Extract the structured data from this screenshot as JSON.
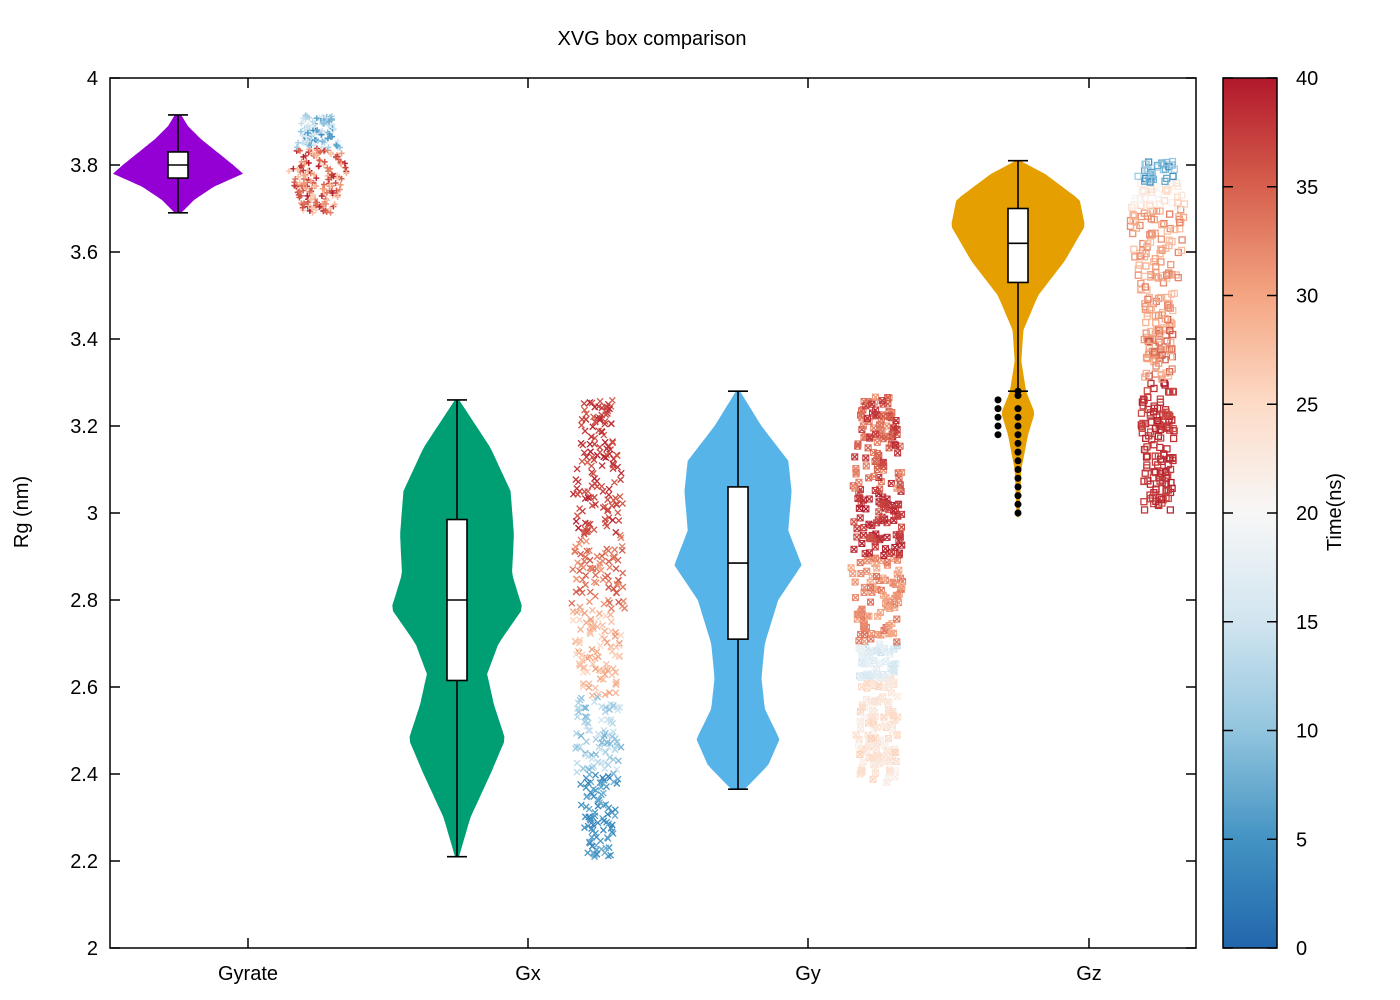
{
  "chart_data": {
    "type": "violin",
    "title": "XVG box comparison",
    "ylabel": "Rg (nm)",
    "xlabel": "",
    "ylim": [
      2,
      4
    ],
    "yticks": [
      "2",
      "2.2",
      "2.4",
      "2.6",
      "2.8",
      "3",
      "3.2",
      "3.4",
      "3.6",
      "3.8",
      "4"
    ],
    "categories": [
      "Gyrate",
      "Gx",
      "Gy",
      "Gz"
    ],
    "series": [
      {
        "name": "Gyrate",
        "color": "#9400d3",
        "marker": "+",
        "min": 3.69,
        "q1": 3.77,
        "median": 3.8,
        "q3": 3.83,
        "max": 3.915,
        "profile": [
          [
            3.69,
            0.05
          ],
          [
            3.72,
            0.25
          ],
          [
            3.75,
            0.55
          ],
          [
            3.78,
            1.0
          ],
          [
            3.8,
            0.85
          ],
          [
            3.83,
            0.6
          ],
          [
            3.86,
            0.35
          ],
          [
            3.89,
            0.15
          ],
          [
            3.915,
            0.05
          ]
        ],
        "scatter_bands": [
          {
            "y0": 3.69,
            "y1": 3.84,
            "t0": 26,
            "t1": 40
          },
          {
            "y0": 3.84,
            "y1": 3.915,
            "t0": 4,
            "t1": 18
          }
        ],
        "outliers": []
      },
      {
        "name": "Gx",
        "color": "#009e73",
        "marker": "x",
        "min": 2.21,
        "q1": 2.615,
        "median": 2.8,
        "q3": 2.985,
        "max": 3.26,
        "profile": [
          [
            2.21,
            0.03
          ],
          [
            2.3,
            0.2
          ],
          [
            2.4,
            0.5
          ],
          [
            2.48,
            0.72
          ],
          [
            2.56,
            0.55
          ],
          [
            2.63,
            0.45
          ],
          [
            2.7,
            0.62
          ],
          [
            2.78,
            0.98
          ],
          [
            2.86,
            0.82
          ],
          [
            2.95,
            0.85
          ],
          [
            3.05,
            0.8
          ],
          [
            3.15,
            0.5
          ],
          [
            3.26,
            0.03
          ]
        ],
        "scatter_bands": [
          {
            "y0": 2.21,
            "y1": 2.4,
            "t0": 3,
            "t1": 8
          },
          {
            "y0": 2.4,
            "y1": 2.58,
            "t0": 8,
            "t1": 15
          },
          {
            "y0": 2.58,
            "y1": 2.78,
            "t0": 25,
            "t1": 31
          },
          {
            "y0": 2.78,
            "y1": 2.95,
            "t0": 30,
            "t1": 36
          },
          {
            "y0": 2.95,
            "y1": 3.26,
            "t0": 35,
            "t1": 40
          }
        ],
        "outliers": []
      },
      {
        "name": "Gy",
        "color": "#56b4e9",
        "marker": "square-cross",
        "min": 2.365,
        "q1": 2.71,
        "median": 2.885,
        "q3": 3.06,
        "max": 3.28,
        "profile": [
          [
            2.365,
            0.1
          ],
          [
            2.42,
            0.45
          ],
          [
            2.48,
            0.62
          ],
          [
            2.55,
            0.4
          ],
          [
            2.62,
            0.35
          ],
          [
            2.7,
            0.4
          ],
          [
            2.8,
            0.6
          ],
          [
            2.88,
            0.95
          ],
          [
            2.96,
            0.75
          ],
          [
            3.05,
            0.8
          ],
          [
            3.12,
            0.75
          ],
          [
            3.2,
            0.35
          ],
          [
            3.28,
            0.03
          ]
        ],
        "scatter_bands": [
          {
            "y0": 2.38,
            "y1": 2.62,
            "t0": 21,
            "t1": 26
          },
          {
            "y0": 2.62,
            "y1": 2.7,
            "t0": 14,
            "t1": 19
          },
          {
            "y0": 2.7,
            "y1": 2.9,
            "t0": 29,
            "t1": 34
          },
          {
            "y0": 2.9,
            "y1": 3.05,
            "t0": 36,
            "t1": 40
          },
          {
            "y0": 3.05,
            "y1": 3.27,
            "t0": 31,
            "t1": 39
          }
        ],
        "outliers": []
      },
      {
        "name": "Gz",
        "color": "#e69f00",
        "marker": "square",
        "min": 3.28,
        "q1": 3.53,
        "median": 3.62,
        "q3": 3.7,
        "max": 3.81,
        "profile": [
          [
            2.99,
            0.02
          ],
          [
            3.1,
            0.05
          ],
          [
            3.18,
            0.15
          ],
          [
            3.23,
            0.25
          ],
          [
            3.28,
            0.12
          ],
          [
            3.35,
            0.05
          ],
          [
            3.42,
            0.08
          ],
          [
            3.5,
            0.3
          ],
          [
            3.58,
            0.7
          ],
          [
            3.66,
            1.0
          ],
          [
            3.72,
            0.92
          ],
          [
            3.78,
            0.4
          ],
          [
            3.81,
            0.03
          ]
        ],
        "scatter_bands": [
          {
            "y0": 3.0,
            "y1": 3.3,
            "t0": 36,
            "t1": 40
          },
          {
            "y0": 3.3,
            "y1": 3.45,
            "t0": 28,
            "t1": 36
          },
          {
            "y0": 3.45,
            "y1": 3.7,
            "t0": 27,
            "t1": 33
          },
          {
            "y0": 3.7,
            "y1": 3.76,
            "t0": 19,
            "t1": 26
          },
          {
            "y0": 3.76,
            "y1": 3.81,
            "t0": 3,
            "t1": 12
          }
        ],
        "outliers": [
          3.18,
          3.2,
          3.22,
          3.24,
          3.26,
          3.28,
          3.27,
          3.24,
          3.22,
          3.2,
          3.18,
          3.16,
          3.14,
          3.12,
          3.1,
          3.08,
          3.06,
          3.04,
          3.02,
          3.0
        ]
      }
    ],
    "colorbar": {
      "label": "Time(ns)",
      "ticks": [
        "0",
        "5",
        "10",
        "15",
        "20",
        "25",
        "30",
        "35",
        "40"
      ],
      "range": [
        0,
        40
      ],
      "palette": [
        "#2166ac",
        "#4393c3",
        "#92c5de",
        "#d1e5f0",
        "#f7f7f7",
        "#fddbc7",
        "#f4a582",
        "#d6604d",
        "#b2182b"
      ]
    },
    "grid": false
  }
}
